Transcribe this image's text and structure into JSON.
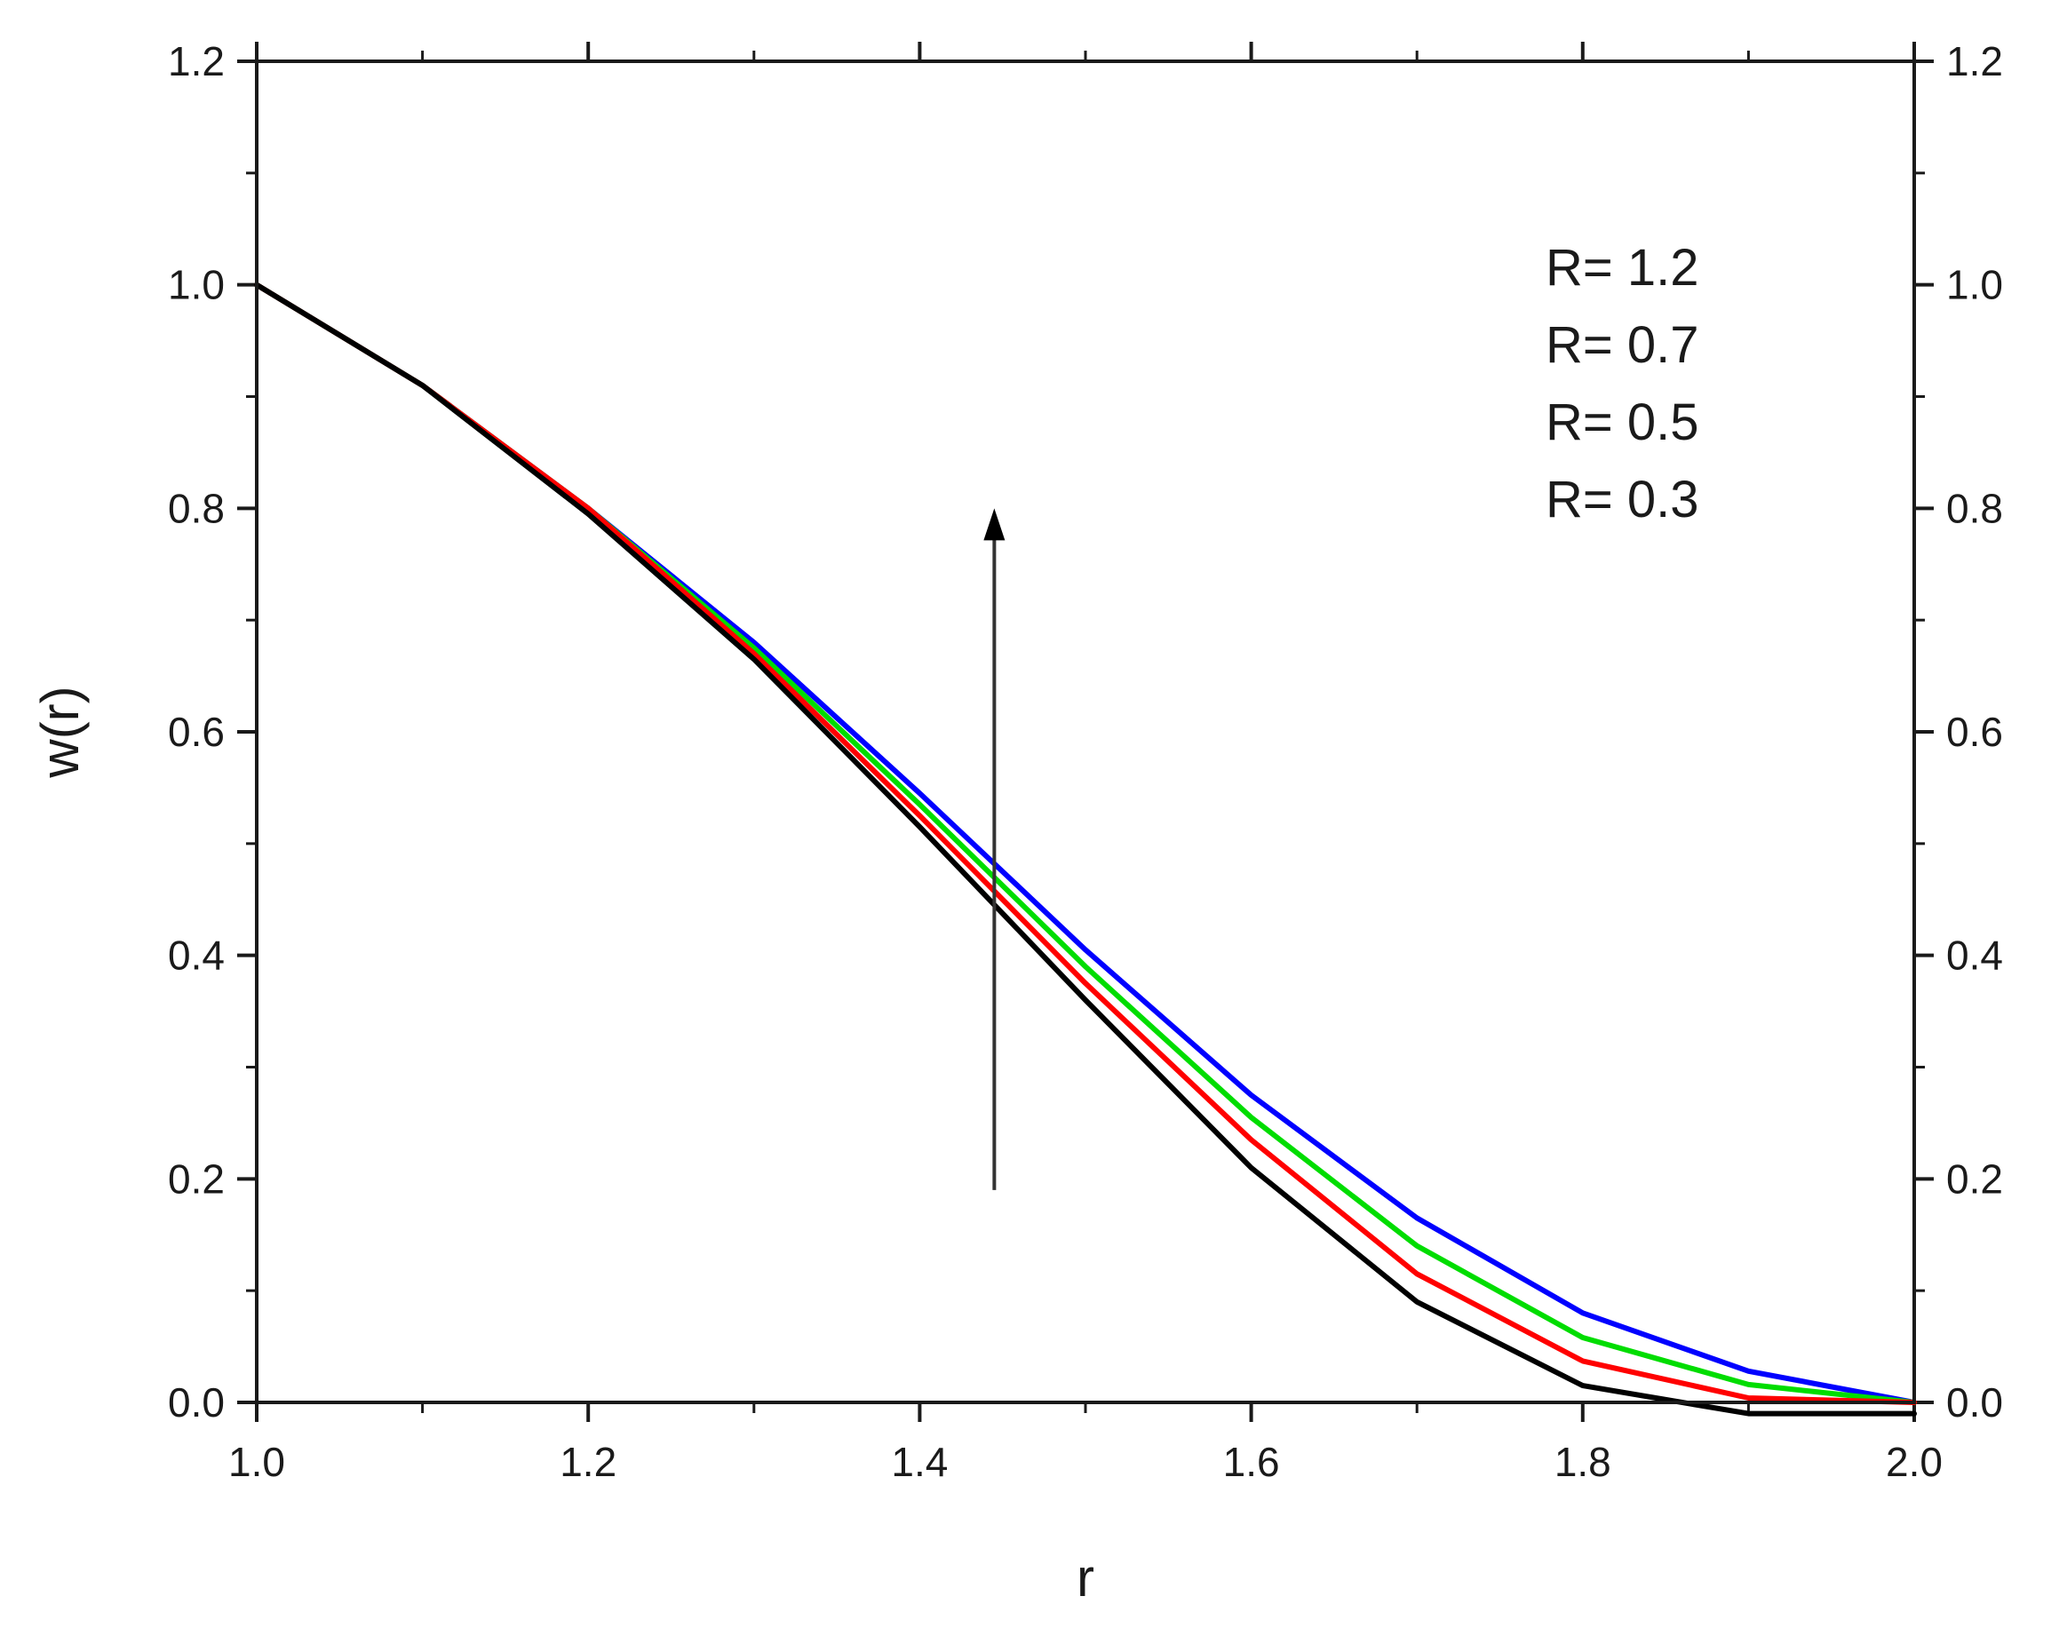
{
  "chart_data": {
    "type": "line",
    "xlabel": "r",
    "ylabel": "w(r)",
    "xlim": [
      1.0,
      2.0
    ],
    "ylim": [
      0.0,
      1.2
    ],
    "x_ticks": [
      "1.0",
      "1.2",
      "1.4",
      "1.6",
      "1.8",
      "2.0"
    ],
    "y_ticks": [
      "0.0",
      "0.2",
      "0.4",
      "0.6",
      "0.8",
      "1.0",
      "1.2"
    ],
    "x": [
      1.0,
      1.1,
      1.2,
      1.3,
      1.4,
      1.5,
      1.6,
      1.7,
      1.8,
      1.9,
      2.0
    ],
    "series": [
      {
        "name": "R= 1.2",
        "color": "#0000ff",
        "values": [
          1.0,
          0.91,
          0.8,
          0.68,
          0.545,
          0.405,
          0.275,
          0.165,
          0.08,
          0.028,
          0.0
        ]
      },
      {
        "name": "R= 0.7",
        "color": "#00dd00",
        "values": [
          1.0,
          0.91,
          0.8,
          0.675,
          0.535,
          0.39,
          0.255,
          0.14,
          0.058,
          0.016,
          0.0
        ]
      },
      {
        "name": "R= 0.5",
        "color": "#ff0000",
        "values": [
          1.0,
          0.91,
          0.8,
          0.67,
          0.525,
          0.375,
          0.235,
          0.115,
          0.037,
          0.004,
          0.0
        ]
      },
      {
        "name": "R= 0.3",
        "color": "#000000",
        "values": [
          1.0,
          0.91,
          0.795,
          0.665,
          0.515,
          0.36,
          0.21,
          0.09,
          0.015,
          -0.01,
          -0.01
        ]
      }
    ],
    "legend_position": "top-right",
    "legend_labels": [
      "R= 1.2",
      "R= 0.7",
      "R= 0.5",
      "R= 0.3"
    ],
    "annotation": {
      "type": "arrow",
      "direction": "up",
      "x": 1.445,
      "y_from": 0.19,
      "y_to": 0.8,
      "color": "#333333"
    },
    "mirrored_right_axis": true,
    "grid": false
  }
}
